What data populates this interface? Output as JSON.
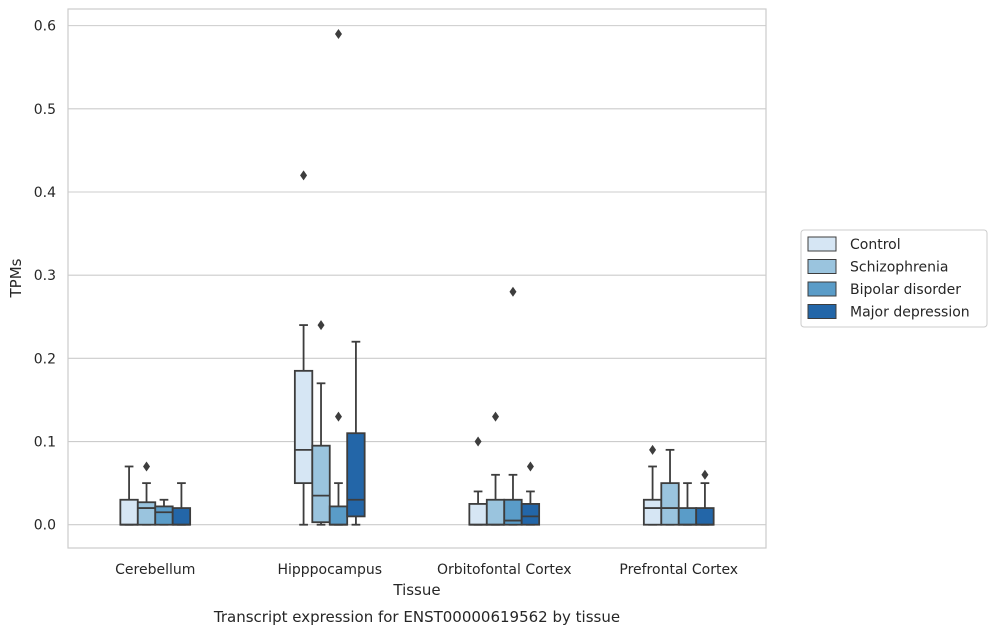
{
  "caption": "Transcript expression for ENST00000619562 by tissue",
  "chart_data": {
    "type": "box",
    "xlabel": "Tissue",
    "ylabel": "TPMs",
    "ylim": [
      -0.028,
      0.62
    ],
    "yticks": [
      0.0,
      0.1,
      0.2,
      0.3,
      0.4,
      0.5,
      0.6
    ],
    "ytick_labels": [
      "0.0",
      "0.1",
      "0.2",
      "0.3",
      "0.4",
      "0.5",
      "0.6"
    ],
    "grid": true,
    "legend_position": "right",
    "categories": [
      "Cerebellum",
      "Hipppocampus",
      "Orbitofontal Cortex",
      "Prefrontal Cortex"
    ],
    "series": [
      {
        "name": "Control",
        "color": "#d6e6f4",
        "boxes": [
          {
            "q1": 0.0,
            "median": 0.0,
            "q3": 0.03,
            "whislo": 0.0,
            "whishi": 0.07,
            "fliers": []
          },
          {
            "q1": 0.05,
            "median": 0.09,
            "q3": 0.185,
            "whislo": 0.0,
            "whishi": 0.24,
            "fliers": [
              0.42
            ]
          },
          {
            "q1": 0.0,
            "median": 0.0,
            "q3": 0.025,
            "whislo": 0.0,
            "whishi": 0.04,
            "fliers": [
              0.1
            ]
          },
          {
            "q1": 0.0,
            "median": 0.02,
            "q3": 0.03,
            "whislo": 0.0,
            "whishi": 0.07,
            "fliers": [
              0.09
            ]
          }
        ]
      },
      {
        "name": "Schizophrenia",
        "color": "#9ac4de",
        "boxes": [
          {
            "q1": 0.0,
            "median": 0.02,
            "q3": 0.027,
            "whislo": 0.0,
            "whishi": 0.05,
            "fliers": [
              0.07
            ]
          },
          {
            "q1": 0.003,
            "median": 0.035,
            "q3": 0.095,
            "whislo": 0.0,
            "whishi": 0.17,
            "fliers": [
              0.24
            ]
          },
          {
            "q1": 0.0,
            "median": 0.0,
            "q3": 0.03,
            "whislo": 0.0,
            "whishi": 0.06,
            "fliers": [
              0.13
            ]
          },
          {
            "q1": 0.0,
            "median": 0.02,
            "q3": 0.05,
            "whislo": 0.0,
            "whishi": 0.09,
            "fliers": []
          }
        ]
      },
      {
        "name": "Bipolar disorder",
        "color": "#5a9cc8",
        "boxes": [
          {
            "q1": 0.0,
            "median": 0.015,
            "q3": 0.022,
            "whislo": 0.0,
            "whishi": 0.03,
            "fliers": []
          },
          {
            "q1": 0.0,
            "median": 0.0,
            "q3": 0.022,
            "whislo": 0.0,
            "whishi": 0.05,
            "fliers": [
              0.13,
              0.59
            ]
          },
          {
            "q1": 0.0,
            "median": 0.005,
            "q3": 0.03,
            "whislo": 0.0,
            "whishi": 0.06,
            "fliers": [
              0.28
            ]
          },
          {
            "q1": 0.0,
            "median": 0.0,
            "q3": 0.02,
            "whislo": 0.0,
            "whishi": 0.05,
            "fliers": []
          }
        ]
      },
      {
        "name": "Major depression",
        "color": "#2366a8",
        "boxes": [
          {
            "q1": 0.0,
            "median": 0.0,
            "q3": 0.02,
            "whislo": 0.0,
            "whishi": 0.05,
            "fliers": []
          },
          {
            "q1": 0.01,
            "median": 0.03,
            "q3": 0.11,
            "whislo": 0.0,
            "whishi": 0.22,
            "fliers": []
          },
          {
            "q1": 0.0,
            "median": 0.01,
            "q3": 0.025,
            "whislo": 0.0,
            "whishi": 0.04,
            "fliers": [
              0.07
            ]
          },
          {
            "q1": 0.0,
            "median": 0.0,
            "q3": 0.02,
            "whislo": 0.0,
            "whishi": 0.05,
            "fliers": [
              0.06
            ]
          }
        ]
      }
    ]
  }
}
